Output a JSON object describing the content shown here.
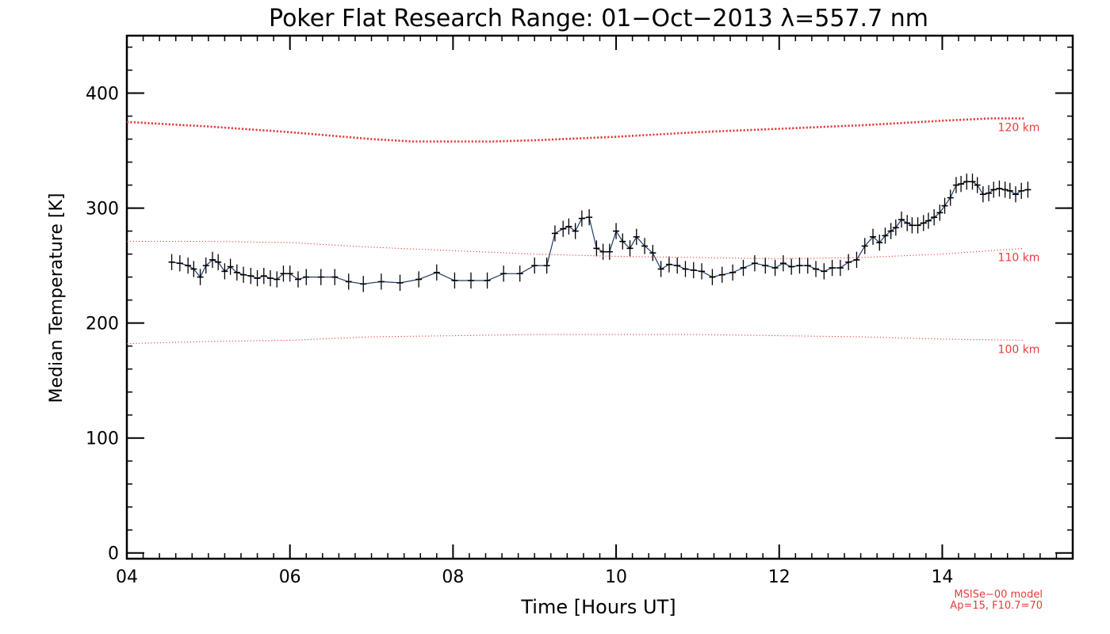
{
  "chart_data": {
    "type": "line",
    "title": "Poker Flat Research Range: 01−Oct−2013 λ=557.7 nm",
    "xlabel": "Time [Hours UT]",
    "ylabel": "Median Temperature [K]",
    "xlim": [
      4,
      15.6
    ],
    "ylim": [
      -5,
      450
    ],
    "x_ticks": [
      4,
      6,
      8,
      10,
      12,
      14
    ],
    "x_tick_labels": [
      "04",
      "06",
      "08",
      "10",
      "12",
      "14"
    ],
    "y_ticks": [
      0,
      100,
      200,
      300,
      400
    ],
    "y_tick_labels": [
      "0",
      "100",
      "200",
      "300",
      "400"
    ],
    "grid": false,
    "colors": {
      "axis": "#000000",
      "measurement": "#000000",
      "measurement_line": "#1f3a68",
      "model": "#e63b3b"
    },
    "series": [
      {
        "name": "Median Temperature",
        "style": "line-with-error-bars",
        "error": 7,
        "x": [
          4.55,
          4.65,
          4.75,
          4.82,
          4.9,
          4.97,
          5.05,
          5.12,
          5.2,
          5.27,
          5.35,
          5.43,
          5.52,
          5.6,
          5.68,
          5.76,
          5.84,
          5.92,
          6.0,
          6.1,
          6.2,
          6.38,
          6.55,
          6.72,
          6.9,
          7.12,
          7.35,
          7.58,
          7.8,
          8.02,
          8.22,
          8.42,
          8.62,
          8.82,
          9.0,
          9.15,
          9.25,
          9.35,
          9.42,
          9.5,
          9.58,
          9.67,
          9.76,
          9.84,
          9.92,
          10.0,
          10.08,
          10.17,
          10.25,
          10.35,
          10.45,
          10.55,
          10.65,
          10.75,
          10.85,
          10.95,
          11.05,
          11.18,
          11.3,
          11.43,
          11.56,
          11.7,
          11.83,
          11.95,
          12.05,
          12.15,
          12.25,
          12.35,
          12.45,
          12.55,
          12.65,
          12.75,
          12.85,
          12.95,
          13.05,
          13.15,
          13.23,
          13.3,
          13.37,
          13.43,
          13.5,
          13.57,
          13.63,
          13.7,
          13.77,
          13.83,
          13.9,
          13.97,
          14.03,
          14.1,
          14.17,
          14.23,
          14.3,
          14.37,
          14.43,
          14.5,
          14.57,
          14.63,
          14.7,
          14.77,
          14.83,
          14.9,
          14.97,
          15.05
        ],
        "y": [
          253,
          252,
          250,
          247,
          240,
          250,
          255,
          253,
          245,
          249,
          244,
          242,
          241,
          239,
          241,
          239,
          238,
          243,
          243,
          238,
          240,
          240,
          240,
          236,
          234,
          236,
          235,
          238,
          244,
          237,
          237,
          237,
          243,
          243,
          250,
          250,
          278,
          282,
          284,
          280,
          291,
          292,
          265,
          262,
          262,
          280,
          271,
          265,
          275,
          267,
          261,
          247,
          251,
          250,
          247,
          246,
          245,
          240,
          242,
          244,
          248,
          252,
          250,
          248,
          252,
          249,
          250,
          250,
          247,
          245,
          248,
          248,
          253,
          255,
          267,
          275,
          270,
          276,
          280,
          283,
          290,
          287,
          285,
          285,
          287,
          289,
          292,
          296,
          302,
          309,
          320,
          321,
          323,
          323,
          320,
          312,
          313,
          316,
          317,
          316,
          315,
          312,
          315,
          316
        ]
      },
      {
        "name": "MSISe-00 120 km",
        "label": "120 km",
        "style": "dotted-thick",
        "x": [
          4.0,
          5.0,
          6.0,
          7.0,
          7.5,
          8.0,
          8.5,
          9.0,
          10.0,
          11.0,
          12.0,
          13.0,
          14.0,
          14.6,
          15.0
        ],
        "y": [
          375,
          371,
          366,
          360,
          358,
          358,
          358,
          359,
          362,
          366,
          369,
          372,
          376,
          378,
          378
        ]
      },
      {
        "name": "MSISe-00 110 km",
        "label": "110 km",
        "style": "dotted",
        "x": [
          4.0,
          5.0,
          6.0,
          7.0,
          8.0,
          9.0,
          10.0,
          11.0,
          12.0,
          13.0,
          14.0,
          15.0
        ],
        "y": [
          271,
          271,
          270,
          266,
          263,
          260,
          258,
          257,
          256,
          257,
          260,
          265
        ]
      },
      {
        "name": "MSISe-00 100 km",
        "label": "100 km",
        "style": "dotted",
        "x": [
          4.0,
          5.0,
          6.0,
          7.0,
          8.0,
          9.0,
          10.0,
          11.0,
          12.0,
          13.0,
          14.0,
          15.0
        ],
        "y": [
          182,
          184,
          185,
          188,
          189,
          190,
          190,
          190,
          189,
          188,
          186,
          185
        ]
      }
    ],
    "annotations": {
      "model_line1": "MSISe−00 model",
      "model_line2": "Ap=15, F10.7=70"
    }
  }
}
